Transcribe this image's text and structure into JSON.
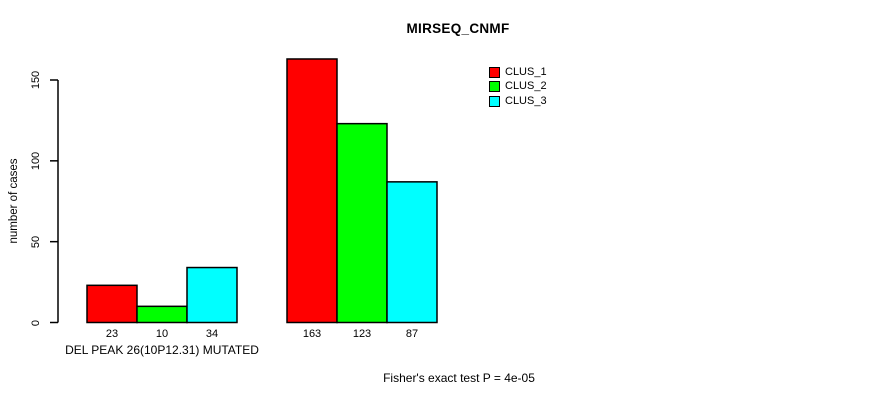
{
  "chart_data": {
    "type": "bar",
    "title": "MIRSEQ_CNMF",
    "ylabel": "number of cases",
    "xlabel": "DEL PEAK 26(10P12.31) MUTATED",
    "annotation": "Fisher's exact test P = 4e-05",
    "yticks": [
      0,
      50,
      100,
      150
    ],
    "ylim": [
      0,
      163
    ],
    "grid": false,
    "legend_position": "top-right",
    "bar_value_labels_shown": true,
    "series": [
      {
        "name": "CLUS_1",
        "color": "#ff0000",
        "values": [
          23,
          163
        ]
      },
      {
        "name": "CLUS_2",
        "color": "#00ff00",
        "values": [
          10,
          123
        ]
      },
      {
        "name": "CLUS_3",
        "color": "#00ffff",
        "values": [
          34,
          87
        ]
      }
    ],
    "groups": [
      {
        "label": "DEL PEAK 26(10P12.31) MUTATED",
        "values": [
          23,
          10,
          34
        ]
      },
      {
        "label": "",
        "values": [
          163,
          123,
          87
        ]
      }
    ],
    "colors": {
      "background": "#ffffff",
      "axis": "#000000",
      "text": "#000000",
      "bar_border": "#000000"
    }
  }
}
